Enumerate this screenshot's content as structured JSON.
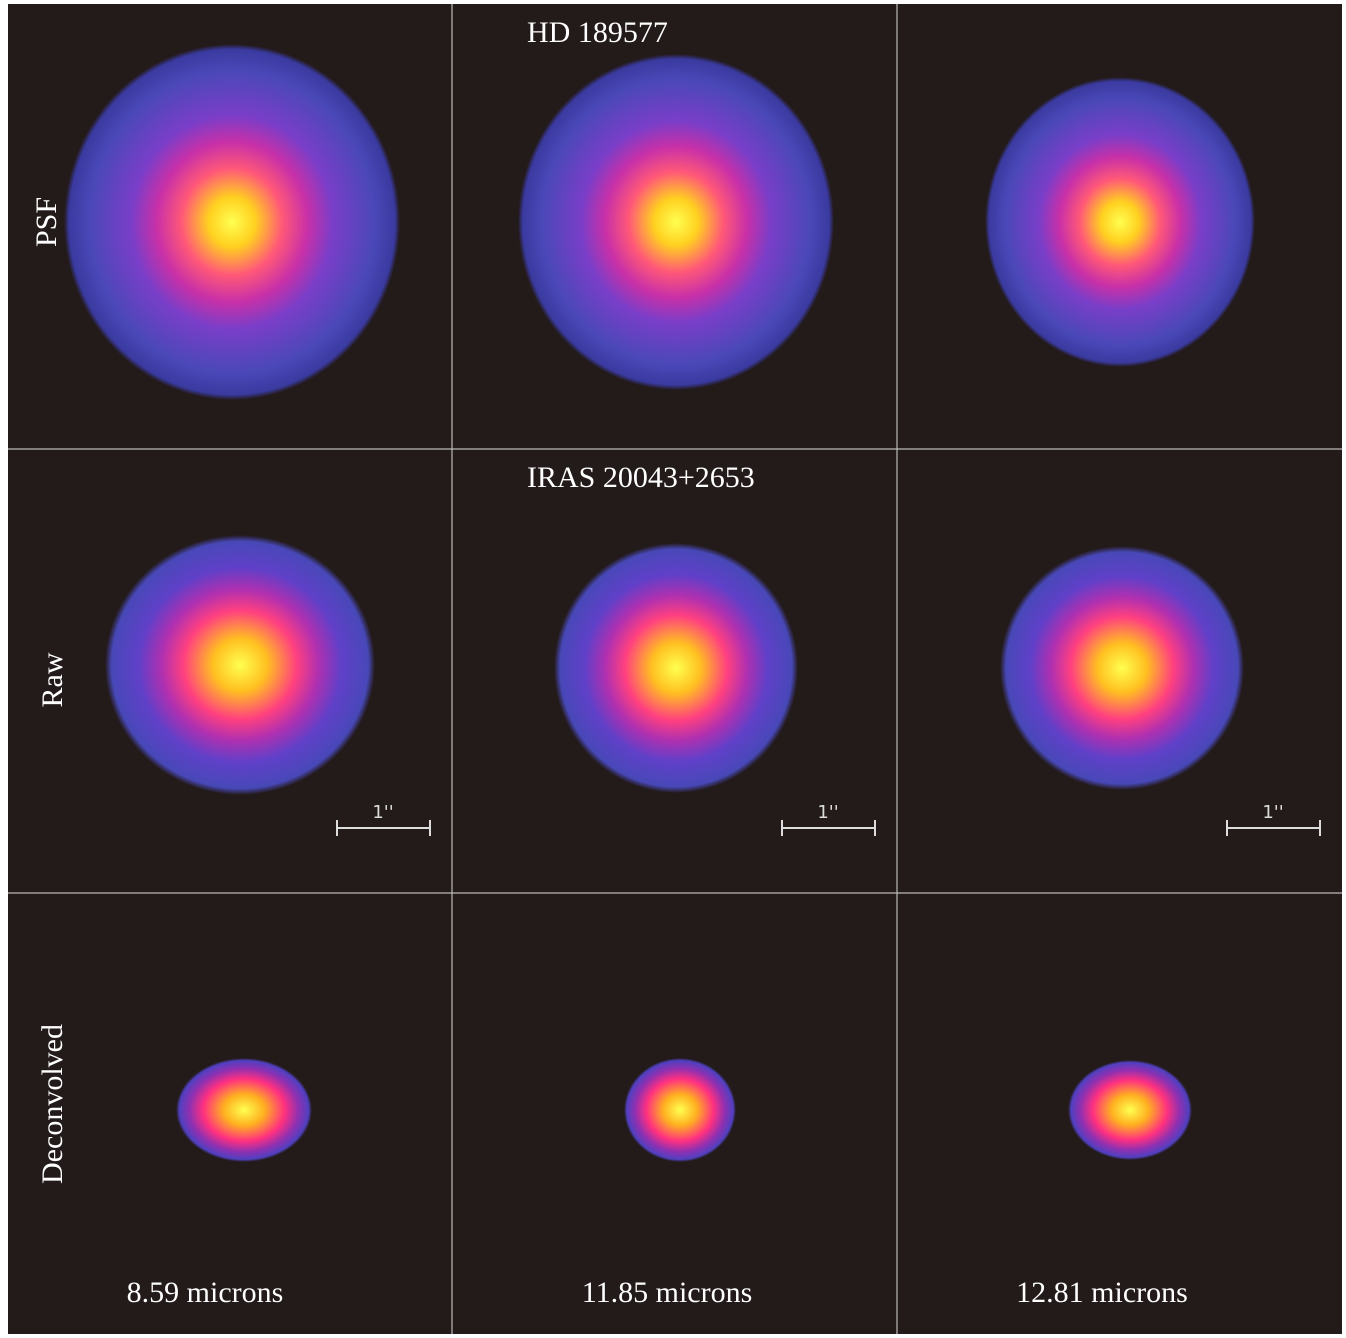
{
  "titles": [
    "HD 189577",
    "IRAS 20043+2653"
  ],
  "rows": [
    "PSF",
    "Raw",
    "Deconvolved"
  ],
  "columns": [
    "8.59 microns",
    "11.85 microns",
    "12.81 microns"
  ],
  "scale_bars": [
    "1''",
    "1''",
    "1''"
  ]
}
